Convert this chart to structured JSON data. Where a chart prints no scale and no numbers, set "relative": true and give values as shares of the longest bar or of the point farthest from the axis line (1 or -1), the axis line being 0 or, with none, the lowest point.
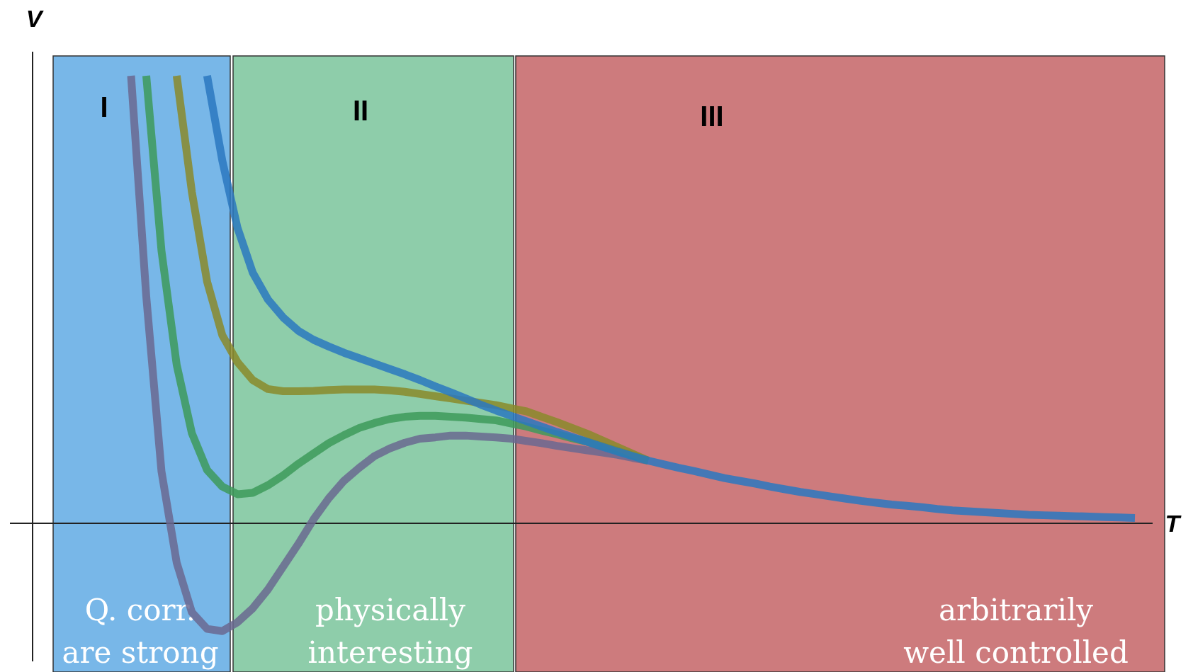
{
  "chart_data": {
    "type": "line",
    "relative": true,
    "xlabel": "T",
    "ylabel": "V",
    "line_style": "solid",
    "annotations": [
      "I",
      "II",
      "III",
      "Q. corr.\nare strong",
      "physically\ninteresting",
      "arbitrarily\nwell controlled"
    ],
    "categories": [
      null,
      null,
      null,
      null,
      null,
      null,
      null,
      null,
      null,
      null,
      null,
      null,
      null,
      null,
      null,
      null,
      null,
      null,
      null,
      null,
      null,
      null,
      null,
      null,
      null,
      null,
      null,
      null,
      null,
      null,
      null,
      null,
      null,
      null,
      null,
      null,
      null,
      null,
      null,
      null,
      null,
      null,
      null,
      null,
      null,
      null,
      null,
      null,
      null,
      null,
      null,
      null,
      null,
      null,
      null,
      null,
      null,
      null,
      null,
      null,
      null,
      null,
      null,
      null,
      null,
      null,
      null
    ],
    "series": [
      {
        "color": "#6a6890",
        "values": [
          1.0,
          0.507,
          0.116,
          -0.088,
          -0.199,
          -0.236,
          -0.241,
          -0.221,
          -0.19,
          -0.148,
          -0.097,
          -0.046,
          0.009,
          0.056,
          0.095,
          0.124,
          0.15,
          0.167,
          0.18,
          0.189,
          0.192,
          0.196,
          0.196,
          0.194,
          0.192,
          0.189,
          0.184,
          0.179,
          0.173,
          0.168,
          0.163,
          0.158,
          0.153,
          0.146,
          0.14,
          null,
          null,
          null,
          null,
          null,
          null,
          null,
          null,
          null,
          null,
          null,
          null,
          null,
          null,
          null,
          null,
          null,
          null,
          null,
          null,
          null,
          null,
          null,
          null,
          null,
          null,
          null,
          null,
          null,
          null,
          null,
          null
        ]
      },
      {
        "color": "#3d9a5a",
        "values": [
          null,
          1.0,
          0.609,
          0.354,
          0.201,
          0.119,
          0.082,
          0.065,
          0.068,
          0.085,
          0.107,
          0.133,
          0.156,
          0.179,
          0.197,
          0.213,
          0.224,
          0.233,
          0.238,
          0.24,
          0.24,
          0.238,
          0.236,
          0.233,
          0.23,
          0.223,
          0.216,
          0.207,
          0.199,
          0.19,
          0.182,
          0.172,
          0.162,
          0.151,
          0.14,
          null,
          null,
          null,
          null,
          null,
          null,
          null,
          null,
          null,
          null,
          null,
          null,
          null,
          null,
          null,
          null,
          null,
          null,
          null,
          null,
          null,
          null,
          null,
          null,
          null,
          null,
          null,
          null,
          null,
          null,
          null,
          null
        ]
      },
      {
        "color": "#8a8a2a",
        "values": [
          null,
          null,
          null,
          1.0,
          0.74,
          0.54,
          0.42,
          0.36,
          0.32,
          0.3,
          0.295,
          0.295,
          0.296,
          0.298,
          0.299,
          0.299,
          0.299,
          0.297,
          0.294,
          0.289,
          0.284,
          0.279,
          0.274,
          0.269,
          0.264,
          0.257,
          0.25,
          0.238,
          0.226,
          0.213,
          0.2,
          0.185,
          0.17,
          0.155,
          0.14,
          null,
          null,
          null,
          null,
          null,
          null,
          null,
          null,
          null,
          null,
          null,
          null,
          null,
          null,
          null,
          null,
          null,
          null,
          null,
          null,
          null,
          null,
          null,
          null,
          null,
          null,
          null,
          null,
          null,
          null,
          null,
          null
        ]
      },
      {
        "color": "#2a78c0",
        "values": [
          null,
          null,
          null,
          null,
          null,
          1.0,
          0.81,
          0.66,
          0.56,
          0.5,
          0.46,
          0.43,
          0.41,
          0.395,
          0.381,
          0.369,
          0.357,
          0.345,
          0.333,
          0.32,
          0.306,
          0.293,
          0.279,
          0.265,
          0.252,
          0.24,
          0.228,
          0.216,
          0.204,
          0.193,
          0.182,
          0.171,
          0.16,
          0.15,
          0.14,
          0.132,
          0.124,
          0.117,
          0.109,
          0.101,
          0.095,
          0.089,
          0.082,
          0.076,
          0.07,
          0.065,
          0.06,
          0.055,
          0.05,
          0.046,
          0.042,
          0.039,
          0.036,
          0.032,
          0.029,
          0.027,
          0.025,
          0.023,
          0.021,
          0.019,
          0.018,
          0.017,
          0.016,
          0.015,
          0.014,
          0.013,
          0.012
        ]
      }
    ]
  }
}
